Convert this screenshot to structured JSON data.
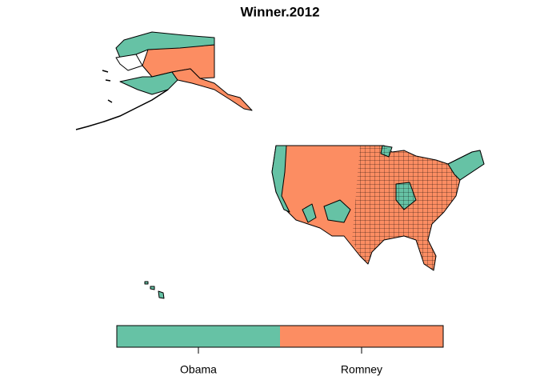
{
  "title": "Winner.2012",
  "legend": {
    "entries": [
      {
        "label": "Obama",
        "color": "#66c2a5"
      },
      {
        "label": "Romney",
        "color": "#fc8d62"
      }
    ]
  }
}
